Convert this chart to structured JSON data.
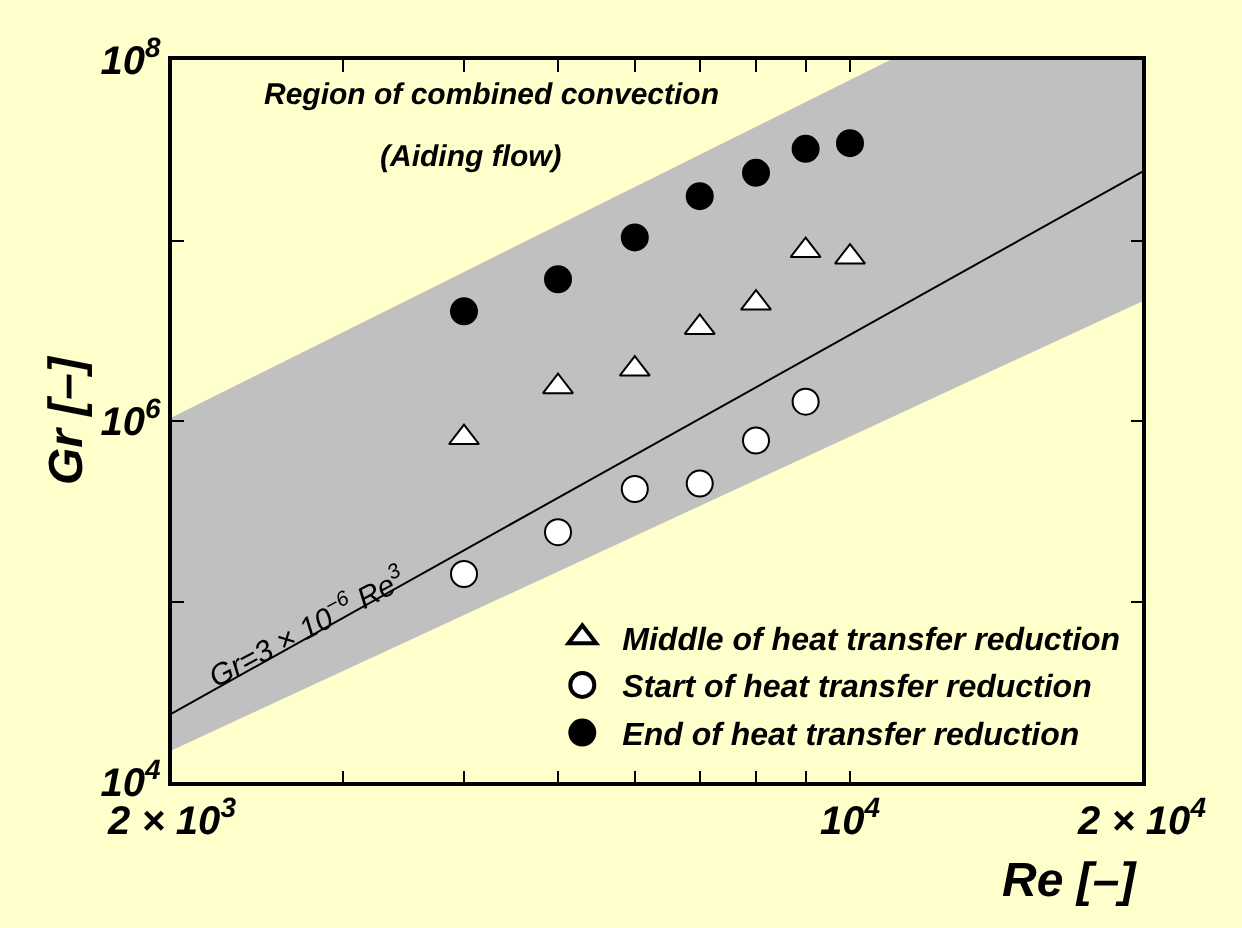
{
  "chart_data": {
    "type": "scatter",
    "xlabel": "Re [–]",
    "ylabel": "Gr [–]",
    "annotations": [
      "Region of combined convection",
      "(Aiding flow)",
      {
        "text": "Gr=3 × 10$^{−6}$ Re$^{3}$",
        "x": 2750,
        "y": 62000
      }
    ],
    "x": [
      4000,
      5000,
      6000,
      7000,
      8000,
      9000,
      10000
    ],
    "series": [
      {
        "name": "Middle of heat transfer reduction",
        "color": "#ffffff",
        "marker": "triangle",
        "values": [
          810000,
          1550000,
          1940000,
          3300000,
          4500000,
          8800000,
          8100000
        ]
      },
      {
        "name": "Start of heat transfer reduction",
        "color": "#ffffff",
        "marker": "circle",
        "values": [
          142000,
          242000,
          420000,
          450000,
          780000,
          1280000,
          null
        ]
      },
      {
        "name": "End of heat transfer reduction",
        "color": "#000000",
        "marker": "circle",
        "values": [
          4050000,
          6100000,
          10400000,
          17600000,
          23700000,
          32200000,
          34600000
        ]
      },
      {
        "type": "line",
        "color": "#000000",
        "x": [
          2000,
          11000,
          20000
        ],
        "values": [
          24000,
          4000000,
          24000000
        ],
        "lower": [
          15000,
          1040000,
          4600000
        ],
        "upper": [
          1050000,
          100000000,
          100000000
        ]
      }
    ],
    "log": "xy",
    "xlim": [
      2000,
      20000
    ],
    "ylim": [
      10000,
      100000000
    ],
    "xticks": [
      {
        "value": 2000,
        "label": "2 × 10$^{3}$"
      },
      {
        "value": 3000,
        "label": null
      },
      {
        "value": 4000,
        "label": null
      },
      {
        "value": 5000,
        "label": null
      },
      {
        "value": 6000,
        "label": null
      },
      {
        "value": 7000,
        "label": null
      },
      {
        "value": 8000,
        "label": null
      },
      {
        "value": 9000,
        "label": null
      },
      {
        "value": 10000,
        "label": "10$^{4}$"
      },
      {
        "value": 20000,
        "label": "2 × 10$^{4}$"
      }
    ],
    "yticks": [
      {
        "value": 10000,
        "label": "10$^{4}$"
      },
      {
        "value": 100000,
        "label": null
      },
      {
        "value": 1000000,
        "label": "10$^{6}$"
      },
      {
        "value": 10000000,
        "label": null
      },
      {
        "value": 100000000,
        "label": "10$^{8}$"
      }
    ],
    "grid": false,
    "legend": "bottom right"
  }
}
